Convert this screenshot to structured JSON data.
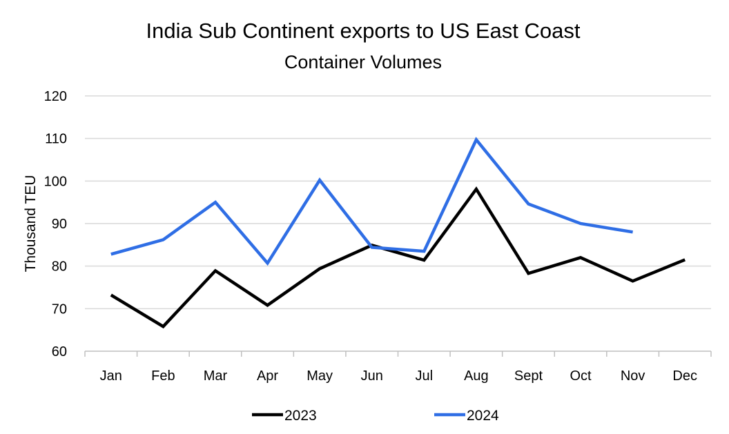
{
  "chart_data": {
    "type": "line",
    "title": "India Sub Continent exports to US East Coast",
    "subtitle": "Container Volumes",
    "xlabel": "",
    "ylabel": "Thousand TEU",
    "ylim": [
      60,
      120
    ],
    "yticks": [
      60,
      70,
      80,
      90,
      100,
      110,
      120
    ],
    "grid": true,
    "legend_position": "bottom",
    "categories": [
      "Jan",
      "Feb",
      "Mar",
      "Apr",
      "May",
      "Jun",
      "Jul",
      "Aug",
      "Sept",
      "Oct",
      "Nov",
      "Dec"
    ],
    "series": [
      {
        "name": "2023",
        "color": "#000000",
        "values": [
          73.2,
          65.8,
          78.9,
          70.8,
          79.4,
          84.9,
          81.4,
          98.1,
          78.3,
          82.0,
          76.5,
          81.5
        ]
      },
      {
        "name": "2024",
        "color": "#2f6ee5",
        "values": [
          82.8,
          86.2,
          95.0,
          80.7,
          100.2,
          84.4,
          83.5,
          109.7,
          94.6,
          90.0,
          88.0,
          null
        ]
      }
    ]
  }
}
